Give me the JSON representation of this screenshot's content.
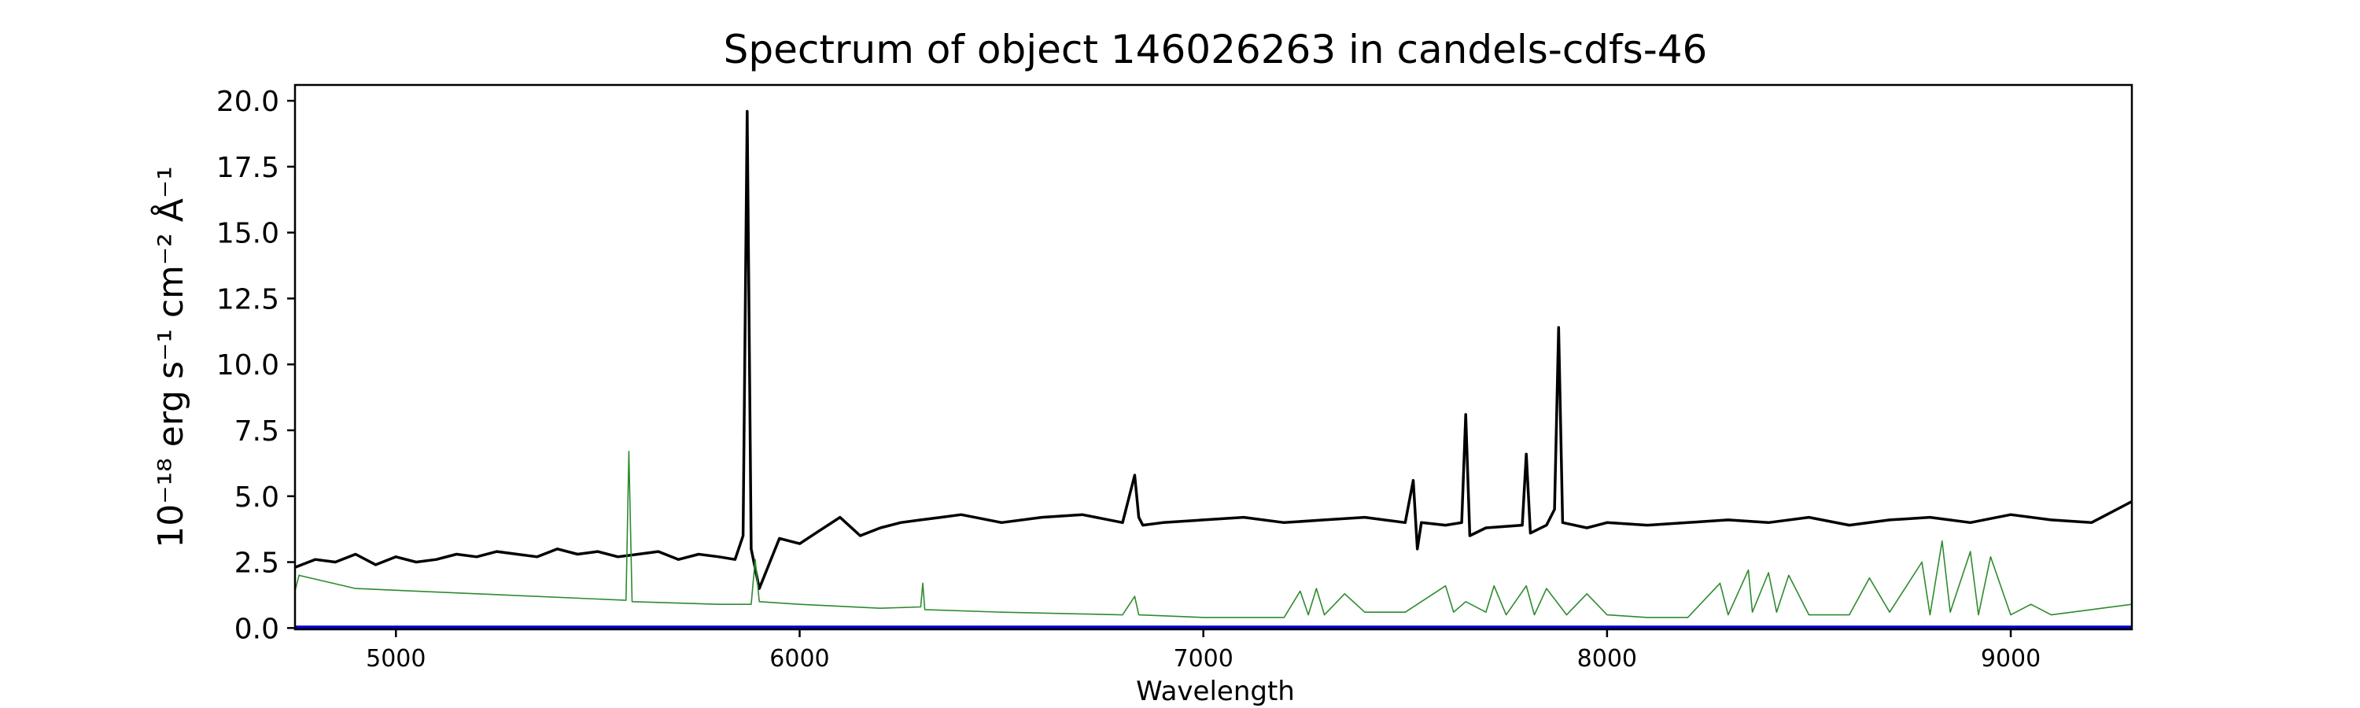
{
  "chart_data": {
    "type": "line",
    "title": "Spectrum of object 146026263 in candels-cdfs-46",
    "xlabel": "Wavelength",
    "ylabel": "10⁻¹⁸ erg s⁻¹ cm⁻² Å⁻¹",
    "xlim": [
      4750,
      9300
    ],
    "ylim": [
      -0.05,
      20.6
    ],
    "x_ticks": [
      5000,
      6000,
      7000,
      8000,
      9000
    ],
    "y_ticks": [
      0.0,
      2.5,
      5.0,
      7.5,
      10.0,
      12.5,
      15.0,
      17.5,
      20.0
    ],
    "y_tick_labels": [
      "0.0",
      "2.5",
      "5.0",
      "7.5",
      "10.0",
      "12.5",
      "15.0",
      "17.5",
      "20.0"
    ],
    "grid": false,
    "series": [
      {
        "color": "#000000",
        "x": [
          4750,
          4800,
          4850,
          4900,
          4950,
          5000,
          5050,
          5100,
          5150,
          5200,
          5250,
          5300,
          5350,
          5400,
          5450,
          5500,
          5550,
          5600,
          5650,
          5700,
          5750,
          5800,
          5840,
          5860,
          5870,
          5880,
          5900,
          5950,
          6000,
          6050,
          6100,
          6150,
          6200,
          6250,
          6300,
          6350,
          6400,
          6500,
          6600,
          6700,
          6800,
          6830,
          6840,
          6850,
          6900,
          7000,
          7100,
          7200,
          7300,
          7400,
          7500,
          7520,
          7530,
          7540,
          7600,
          7640,
          7650,
          7660,
          7700,
          7790,
          7800,
          7810,
          7850,
          7870,
          7880,
          7890,
          7950,
          8000,
          8100,
          8200,
          8300,
          8400,
          8500,
          8600,
          8700,
          8800,
          8900,
          9000,
          9100,
          9200,
          9300
        ],
        "y": [
          2.3,
          2.6,
          2.5,
          2.8,
          2.4,
          2.7,
          2.5,
          2.6,
          2.8,
          2.7,
          2.9,
          2.8,
          2.7,
          3.0,
          2.8,
          2.9,
          2.7,
          2.8,
          2.9,
          2.6,
          2.8,
          2.7,
          2.6,
          3.5,
          19.6,
          3.0,
          1.5,
          3.4,
          3.2,
          3.7,
          4.2,
          3.5,
          3.8,
          4.0,
          4.1,
          4.2,
          4.3,
          4.0,
          4.2,
          4.3,
          4.0,
          5.8,
          4.2,
          3.9,
          4.0,
          4.1,
          4.2,
          4.0,
          4.1,
          4.2,
          4.0,
          5.6,
          3.0,
          4.0,
          3.9,
          4.0,
          8.1,
          3.5,
          3.8,
          3.9,
          6.6,
          3.6,
          3.9,
          4.5,
          11.4,
          4.0,
          3.8,
          4.0,
          3.9,
          4.0,
          4.1,
          4.0,
          4.2,
          3.9,
          4.1,
          4.2,
          4.0,
          4.3,
          4.1,
          4.0,
          4.8
        ]
      },
      {
        "color": "#2e8b2e",
        "x": [
          4750,
          4760,
          4900,
          5200,
          5500,
          5570,
          5577,
          5585,
          5800,
          5880,
          5890,
          5900,
          6000,
          6200,
          6300,
          6305,
          6310,
          6500,
          6800,
          6830,
          6840,
          7000,
          7200,
          7240,
          7260,
          7280,
          7300,
          7350,
          7400,
          7500,
          7600,
          7620,
          7650,
          7700,
          7720,
          7750,
          7800,
          7820,
          7850,
          7900,
          7950,
          8000,
          8100,
          8200,
          8280,
          8300,
          8350,
          8360,
          8400,
          8420,
          8450,
          8500,
          8600,
          8650,
          8700,
          8780,
          8800,
          8830,
          8850,
          8900,
          8920,
          8950,
          9000,
          9050,
          9100,
          9200,
          9300
        ],
        "y": [
          1.4,
          2.0,
          1.5,
          1.3,
          1.1,
          1.05,
          6.7,
          1.0,
          0.9,
          0.9,
          2.6,
          1.0,
          0.9,
          0.75,
          0.8,
          1.7,
          0.7,
          0.6,
          0.5,
          1.2,
          0.5,
          0.4,
          0.4,
          1.4,
          0.5,
          1.5,
          0.5,
          1.3,
          0.6,
          0.6,
          1.6,
          0.6,
          1.0,
          0.6,
          1.6,
          0.5,
          1.6,
          0.5,
          1.5,
          0.5,
          1.3,
          0.5,
          0.4,
          0.4,
          1.7,
          0.5,
          2.2,
          0.6,
          2.1,
          0.6,
          2.0,
          0.5,
          0.5,
          1.9,
          0.6,
          2.5,
          0.5,
          3.3,
          0.6,
          2.9,
          0.5,
          2.7,
          0.5,
          0.9,
          0.5,
          0.7,
          0.9
        ]
      },
      {
        "color": "#0000cc",
        "x": [
          4750,
          9300
        ],
        "y": [
          0.02,
          0.02
        ]
      }
    ]
  }
}
